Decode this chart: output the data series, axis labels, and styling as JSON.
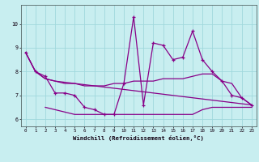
{
  "xlabel": "Windchill (Refroidissement éolien,°C)",
  "bg_color": "#c8eef0",
  "grid_color": "#a0d8dc",
  "line_color": "#880088",
  "xlim": [
    -0.5,
    23.5
  ],
  "ylim": [
    5.7,
    10.8
  ],
  "yticks": [
    6,
    7,
    8,
    9,
    10
  ],
  "xticks": [
    0,
    1,
    2,
    3,
    4,
    5,
    6,
    7,
    8,
    9,
    10,
    11,
    12,
    13,
    14,
    15,
    16,
    17,
    18,
    19,
    20,
    21,
    22,
    23
  ],
  "line1_x": [
    0,
    1,
    2,
    3,
    4,
    5,
    6,
    7,
    8,
    9,
    10,
    11,
    12,
    13,
    14,
    15,
    16,
    17,
    18,
    19,
    20,
    21,
    22,
    23
  ],
  "line1_y": [
    8.8,
    8.0,
    7.8,
    7.1,
    7.1,
    7.0,
    6.5,
    6.4,
    6.2,
    6.2,
    7.5,
    10.3,
    6.6,
    9.2,
    9.1,
    8.5,
    8.6,
    9.7,
    8.5,
    8.0,
    7.6,
    7.0,
    6.9,
    6.6
  ],
  "line2_x": [
    0,
    1,
    2,
    3,
    23
  ],
  "line2_y": [
    8.8,
    8.0,
    7.7,
    7.6,
    6.6
  ],
  "line3_x": [
    0,
    1,
    2,
    3,
    4,
    5,
    6,
    7,
    8,
    9,
    10,
    11,
    12,
    13,
    14,
    15,
    16,
    17,
    18,
    19,
    20,
    21,
    22,
    23
  ],
  "line3_y": [
    8.8,
    8.0,
    7.7,
    7.6,
    7.5,
    7.5,
    7.4,
    7.4,
    7.4,
    7.5,
    7.5,
    7.6,
    7.6,
    7.6,
    7.7,
    7.7,
    7.7,
    7.8,
    7.9,
    7.9,
    7.6,
    7.5,
    6.9,
    6.6
  ],
  "line4_x": [
    2,
    3,
    4,
    5,
    6,
    7,
    8,
    9,
    10,
    11,
    12,
    13,
    14,
    15,
    16,
    17,
    18,
    19,
    20,
    21,
    22,
    23
  ],
  "line4_y": [
    6.5,
    6.4,
    6.3,
    6.2,
    6.2,
    6.2,
    6.2,
    6.2,
    6.2,
    6.2,
    6.2,
    6.2,
    6.2,
    6.2,
    6.2,
    6.2,
    6.4,
    6.5,
    6.5,
    6.5,
    6.5,
    6.5
  ]
}
